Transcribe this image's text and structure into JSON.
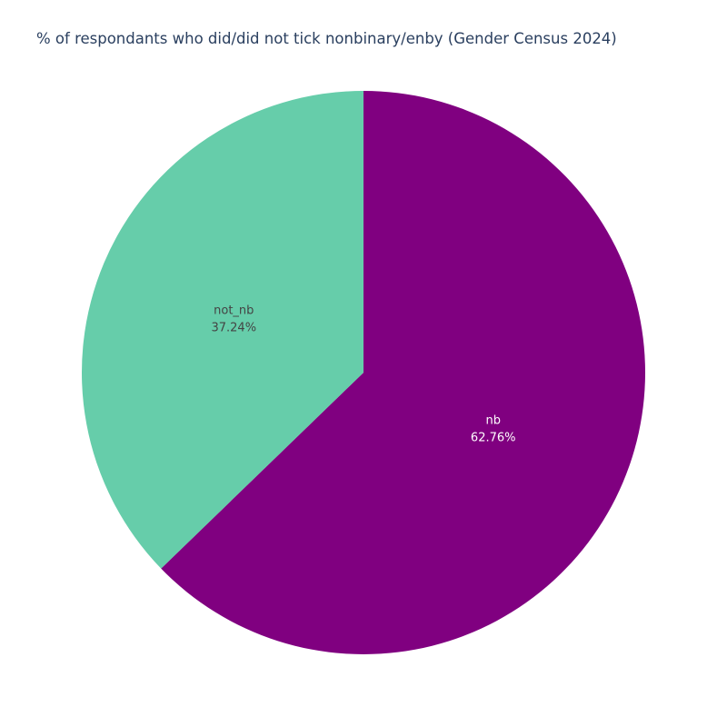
{
  "chart_data": {
    "type": "pie",
    "title": "% of respondants who did/did not tick nonbinary/enby (Gender Census 2024)",
    "slices": [
      {
        "label": "nb",
        "value": 62.76,
        "value_text": "62.76%",
        "color": "#800080",
        "text_color": "#ffffff"
      },
      {
        "label": "not_nb",
        "value": 37.24,
        "value_text": "37.24%",
        "color": "#66cdaa",
        "text_color": "#444444"
      }
    ],
    "direction": "clockwise",
    "start": "top",
    "legend": "none"
  }
}
